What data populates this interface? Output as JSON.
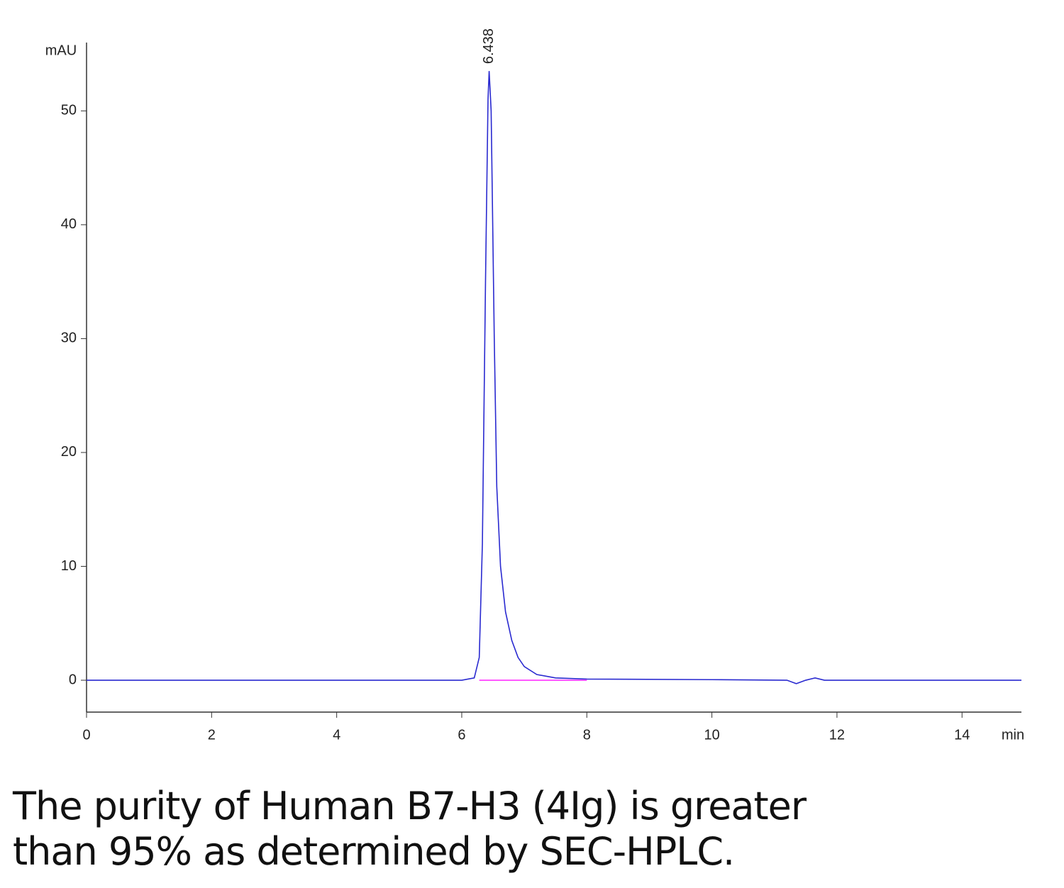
{
  "chart_data": {
    "type": "line",
    "y_label": "mAU",
    "x_label": "min",
    "x": [
      0,
      2,
      4,
      6,
      6.2,
      6.28,
      6.33,
      6.38,
      6.42,
      6.438,
      6.47,
      6.52,
      6.56,
      6.62,
      6.7,
      6.8,
      6.9,
      7.0,
      7.2,
      7.5,
      8,
      10,
      11.2,
      11.35,
      11.5,
      11.65,
      11.8,
      13,
      14.95
    ],
    "series": [
      {
        "color": "#2a2ad0",
        "values": [
          0,
          0,
          0,
          0,
          0.2,
          2,
          12,
          35,
          51,
          53.5,
          50,
          30,
          17,
          10,
          6,
          3.5,
          2,
          1.2,
          0.5,
          0.2,
          0.1,
          0.05,
          0,
          -0.3,
          0,
          0.2,
          0,
          0,
          0
        ]
      },
      {
        "color": "#ff33ff",
        "values": [
          null,
          null,
          null,
          null,
          null,
          0,
          0,
          0,
          0,
          0,
          0,
          0,
          0,
          0,
          0,
          0,
          0,
          0,
          0,
          0,
          0,
          null,
          null,
          null,
          null,
          null,
          null,
          null,
          null
        ]
      }
    ],
    "xlim": [
      0,
      14.95
    ],
    "ylim": [
      -2.8,
      56
    ],
    "xticks": [
      0,
      2,
      4,
      6,
      8,
      10,
      12,
      14
    ],
    "yticks": [
      0,
      10,
      20,
      30,
      40,
      50
    ],
    "annotations": [
      {
        "text": "6.438",
        "x": 6.438,
        "y": 53.5
      }
    ],
    "caption": [
      "The purity of Human B7-H3 (4Ig) is greater",
      "than 95% as determined by SEC-HPLC."
    ]
  }
}
